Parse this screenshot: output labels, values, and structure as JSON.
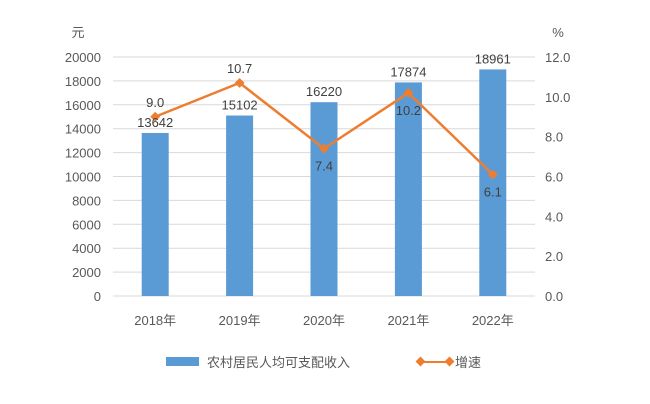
{
  "chart_data": {
    "type": "bar+line",
    "title": "",
    "categories": [
      "2018年",
      "2019年",
      "2020年",
      "2021年",
      "2022年"
    ],
    "series": [
      {
        "name": "农村居民人均可支配收入",
        "type": "bar",
        "axis": "left",
        "color": "#5b9bd5",
        "values": [
          13642,
          15102,
          16220,
          17874,
          18961
        ]
      },
      {
        "name": "增速",
        "type": "line",
        "axis": "right",
        "color": "#ed7d31",
        "marker": "diamond",
        "values": [
          9.0,
          10.7,
          7.4,
          10.2,
          6.1
        ]
      }
    ],
    "left_axis": {
      "unit": "元",
      "ylim": [
        0,
        20000
      ],
      "ticks": [
        "0",
        "2000",
        "4000",
        "6000",
        "8000",
        "10000",
        "12000",
        "14000",
        "16000",
        "18000",
        "20000"
      ]
    },
    "right_axis": {
      "unit": "%",
      "ylim": [
        0,
        12
      ],
      "ticks": [
        "0.0",
        "2.0",
        "4.0",
        "6.0",
        "8.0",
        "10.0",
        "12.0"
      ]
    },
    "xlabel": "",
    "grid": true,
    "legend_position": "bottom"
  },
  "legend": {
    "bar_label": "农村居民人均可支配收入",
    "line_label": "增速"
  }
}
